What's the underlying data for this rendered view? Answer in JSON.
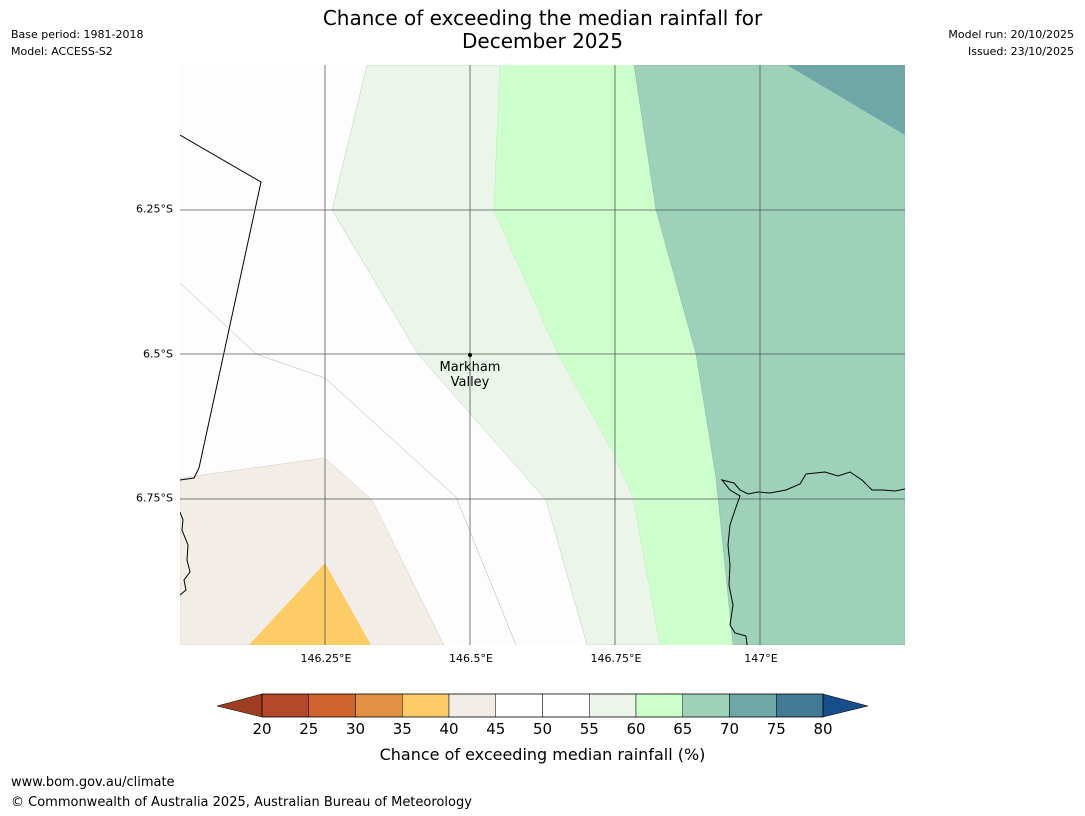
{
  "title": {
    "line1": "Chance of exceeding the median rainfall for",
    "line2": "December 2025"
  },
  "meta": {
    "base_period": "Base period: 1981-2018",
    "model": "Model: ACCESS-S2",
    "model_run": "Model run: 20/10/2025",
    "issued": "Issued: 23/10/2025"
  },
  "map": {
    "lat_ticks": [
      "6.25°S",
      "6.5°S",
      "6.75°S"
    ],
    "lon_ticks": [
      "146.25°E",
      "146.5°E",
      "146.75°E",
      "147°E"
    ],
    "place": {
      "name_line1": "Markham",
      "name_line2": "Valley",
      "lat": -6.5,
      "lon": 146.5
    }
  },
  "colorbar": {
    "title": "Chance of exceeding median rainfall (%)",
    "labels": [
      "20",
      "25",
      "30",
      "35",
      "40",
      "45",
      "50",
      "55",
      "60",
      "65",
      "70",
      "75",
      "80"
    ],
    "below_color": "#9e3d22",
    "above_color": "#174d8a",
    "colors": [
      "#b5472a",
      "#d0642f",
      "#e39244",
      "#fdcc66",
      "#f2ede6",
      "#ffffff",
      "#ffffff",
      "#ebf5ea",
      "#ccffcc",
      "#9ed1ba",
      "#6fa6a8",
      "#427a96"
    ]
  },
  "footer": {
    "url": "www.bom.gov.au/climate",
    "copyright": "© Commonwealth of Australia 2025, Australian Bureau of Meteorology"
  }
}
